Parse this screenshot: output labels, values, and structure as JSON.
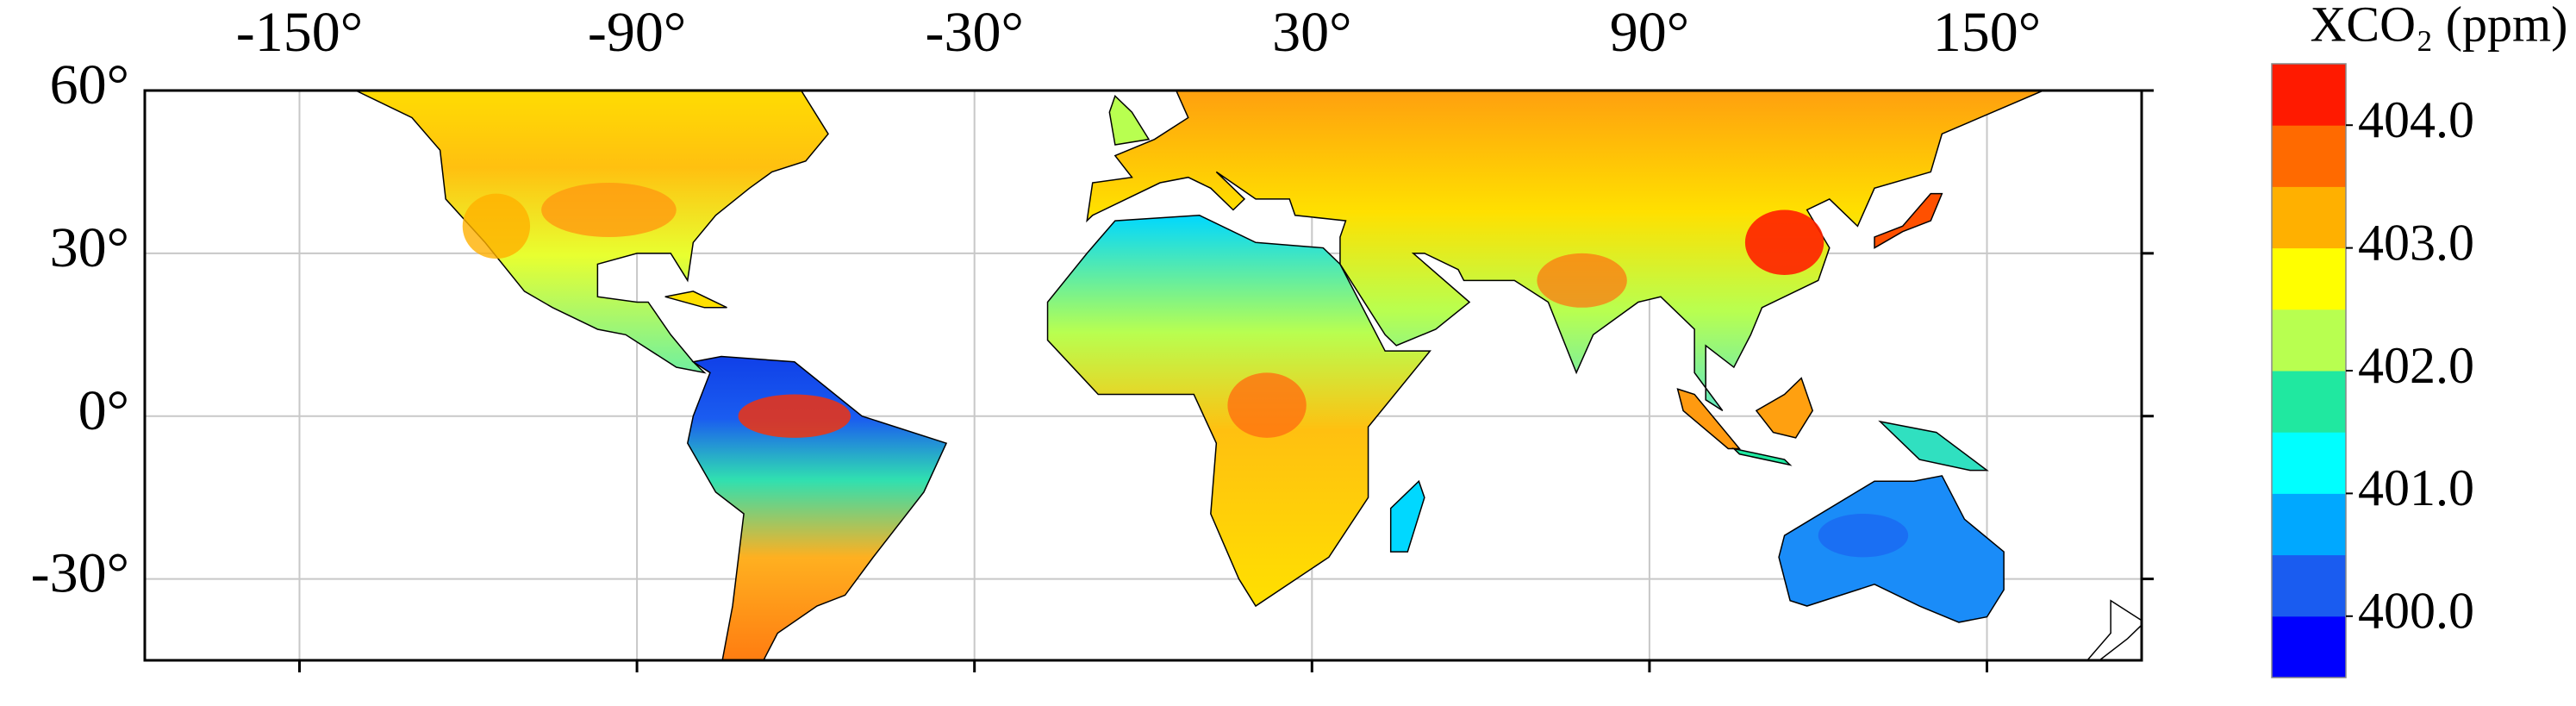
{
  "map": {
    "xlim": [
      -177.5,
      177.5
    ],
    "ylim": [
      -45,
      60
    ],
    "xticks": [
      {
        "value": -150,
        "label": "-150°"
      },
      {
        "value": -90,
        "label": "-90°"
      },
      {
        "value": -30,
        "label": "-30°"
      },
      {
        "value": 30,
        "label": "30°"
      },
      {
        "value": 90,
        "label": "90°"
      },
      {
        "value": 150,
        "label": "150°"
      }
    ],
    "yticks": [
      {
        "value": 60,
        "label": "60°"
      },
      {
        "value": 30,
        "label": "30°"
      },
      {
        "value": 0,
        "label": "0°"
      },
      {
        "value": -30,
        "label": "-30°"
      }
    ],
    "grid": true,
    "colorbar": {
      "title": "XCO₂ (ppm)",
      "clim": [
        399.5,
        404.5
      ],
      "colors": [
        "#0000ff",
        "#1a5cf0",
        "#00a8ff",
        "#00ffff",
        "#20e8a0",
        "#b8ff50",
        "#ffff00",
        "#ffb000",
        "#ff6a00",
        "#ff1a00"
      ],
      "ticks": [
        {
          "value": 400,
          "label": "400.0"
        },
        {
          "value": 401,
          "label": "401.0"
        },
        {
          "value": 402,
          "label": "402.0"
        },
        {
          "value": 403,
          "label": "403.0"
        },
        {
          "value": 404,
          "label": "404.0"
        }
      ]
    }
  }
}
